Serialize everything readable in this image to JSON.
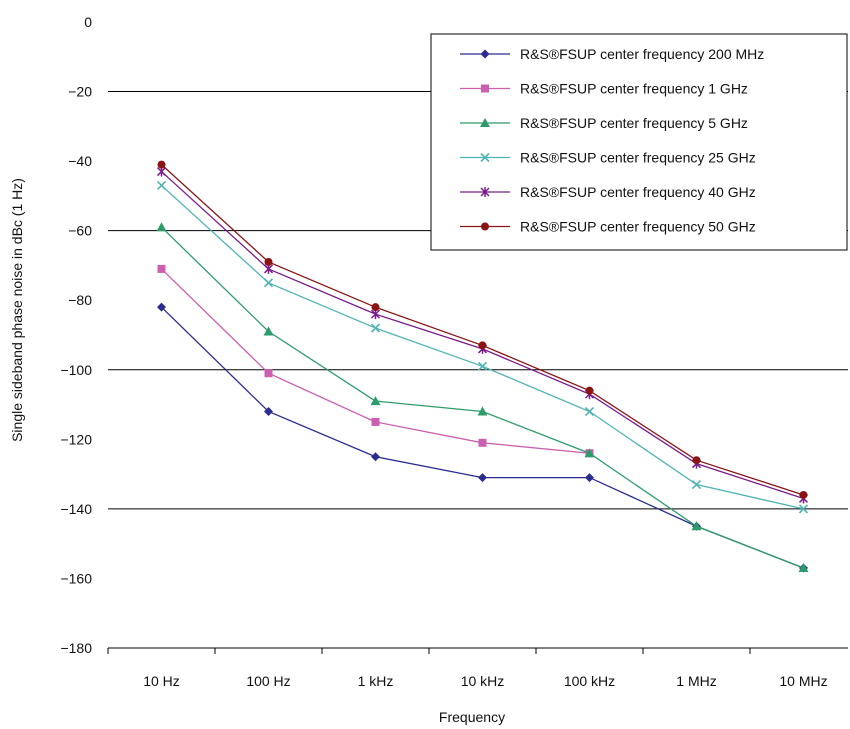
{
  "chart_data": {
    "type": "line",
    "xlabel": "Frequency",
    "ylabel": "Single sideband phase noise in dBc (1 Hz)",
    "categories": [
      "10 Hz",
      "100 Hz",
      "1 kHz",
      "10 kHz",
      "100 kHz",
      "1 MHz",
      "10 MHz"
    ],
    "ylim": [
      -180,
      0
    ],
    "yticks": [
      0,
      -20,
      -40,
      -60,
      -80,
      -100,
      -120,
      -140,
      -160,
      -180
    ],
    "ytick_labels": [
      "0",
      "−20",
      "−40",
      "−60",
      "−80",
      "−100",
      "−120",
      "−140",
      "−160",
      "−180"
    ],
    "legend_position": "top-right",
    "grid": "horizontal lines at -20, -60, -100, -140",
    "series": [
      {
        "name": "R&S®FSUP center frequency 200 MHz",
        "color": "#2B2C8F",
        "marker": "diamond",
        "values": [
          -82,
          -112,
          -125,
          -131,
          -131,
          -145,
          -157
        ]
      },
      {
        "name": "R&S®FSUP center frequency 1 GHz",
        "color": "#CC5FAF",
        "marker": "square",
        "values": [
          -71,
          -101,
          -115,
          -121,
          -124,
          null,
          null
        ]
      },
      {
        "name": "R&S®FSUP center frequency 5 GHz",
        "color": "#2E9B6B",
        "marker": "triangle",
        "values": [
          -59,
          -89,
          -109,
          -112,
          -124,
          -145,
          -157
        ]
      },
      {
        "name": "R&S®FSUP center frequency 25 GHz",
        "color": "#4FB3B3",
        "marker": "x",
        "values": [
          -47,
          -75,
          -88,
          -99,
          -112,
          -133,
          -140
        ]
      },
      {
        "name": "R&S®FSUP center frequency 40 GHz",
        "color": "#7A1C8C",
        "marker": "asterisk",
        "values": [
          -43,
          -71,
          -84,
          -94,
          -107,
          -127,
          -137
        ]
      },
      {
        "name": "R&S®FSUP center frequency 50 GHz",
        "color": "#8A1414",
        "marker": "circle",
        "values": [
          -41,
          -69,
          -82,
          -93,
          -106,
          -126,
          -136
        ]
      }
    ]
  }
}
